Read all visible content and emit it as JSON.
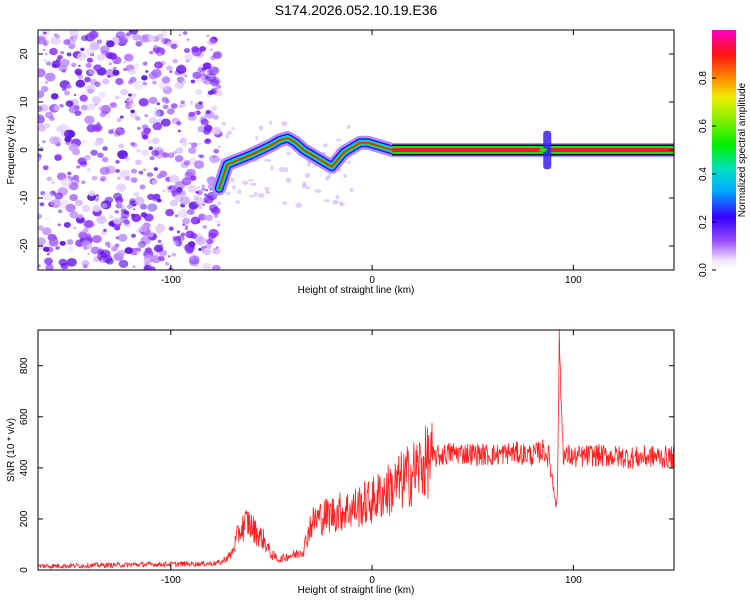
{
  "title": "S174.2026.052.10.19.E36",
  "chart_data": [
    {
      "type": "heatmap",
      "title": "S174.2026.052.10.19.E36",
      "xlabel": "Height of straight line (km)",
      "ylabel": "Frequency (Hz)",
      "xlim": [
        -166,
        150
      ],
      "ylim": [
        -25,
        25
      ],
      "xticks": [
        -100,
        0,
        100
      ],
      "yticks": [
        -20,
        -10,
        0,
        10,
        20
      ],
      "colorbar": {
        "label": "Normalized spectral amplitude",
        "range": [
          0,
          1
        ],
        "ticks": [
          0.0,
          0.2,
          0.4,
          0.6,
          0.8
        ]
      },
      "noise_region_x": [
        -166,
        -76
      ],
      "ridge": [
        [
          -76,
          -8
        ],
        [
          -72,
          -3
        ],
        [
          -66,
          -2
        ],
        [
          -60,
          -1
        ],
        [
          -55,
          0
        ],
        [
          -50,
          1
        ],
        [
          -46,
          2
        ],
        [
          -42,
          2.5
        ],
        [
          -38,
          1.5
        ],
        [
          -34,
          0
        ],
        [
          -30,
          -1
        ],
        [
          -26,
          -2
        ],
        [
          -22,
          -3
        ],
        [
          -20,
          -3.5
        ],
        [
          -17,
          -2
        ],
        [
          -14,
          -0.5
        ],
        [
          -10,
          0.5
        ],
        [
          -6,
          1.5
        ],
        [
          -2,
          1.5
        ],
        [
          2,
          1
        ],
        [
          6,
          0.5
        ],
        [
          10,
          0
        ],
        [
          150,
          0
        ]
      ],
      "burst_x": 87
    },
    {
      "type": "line",
      "xlabel": "Height of straight line (km)",
      "ylabel": "SNR (10 * v/v)",
      "xlim": [
        -166,
        150
      ],
      "ylim": [
        0,
        940
      ],
      "xticks": [
        -100,
        0,
        100
      ],
      "yticks": [
        0,
        200,
        400,
        600,
        800
      ],
      "series": [
        {
          "name": "SNR",
          "color": "#ff2020",
          "x": [
            -166,
            -140,
            -110,
            -80,
            -75,
            -70,
            -66,
            -62,
            -58,
            -54,
            -50,
            -46,
            -42,
            -38,
            -34,
            -31,
            -28,
            -24,
            -20,
            -15,
            -10,
            -5,
            0,
            5,
            10,
            15,
            20,
            25,
            30,
            40,
            50,
            60,
            70,
            80,
            85,
            88,
            90,
            92,
            93,
            94,
            95,
            96,
            98,
            100,
            110,
            120,
            130,
            140,
            150
          ],
          "y": [
            15,
            18,
            22,
            25,
            30,
            60,
            150,
            190,
            150,
            120,
            60,
            40,
            55,
            60,
            80,
            170,
            200,
            210,
            220,
            230,
            240,
            255,
            270,
            300,
            320,
            350,
            380,
            410,
            440,
            460,
            455,
            450,
            460,
            450,
            470,
            440,
            330,
            260,
            900,
            650,
            460,
            440,
            450,
            440,
            450,
            445,
            440,
            445,
            440
          ]
        }
      ]
    }
  ]
}
